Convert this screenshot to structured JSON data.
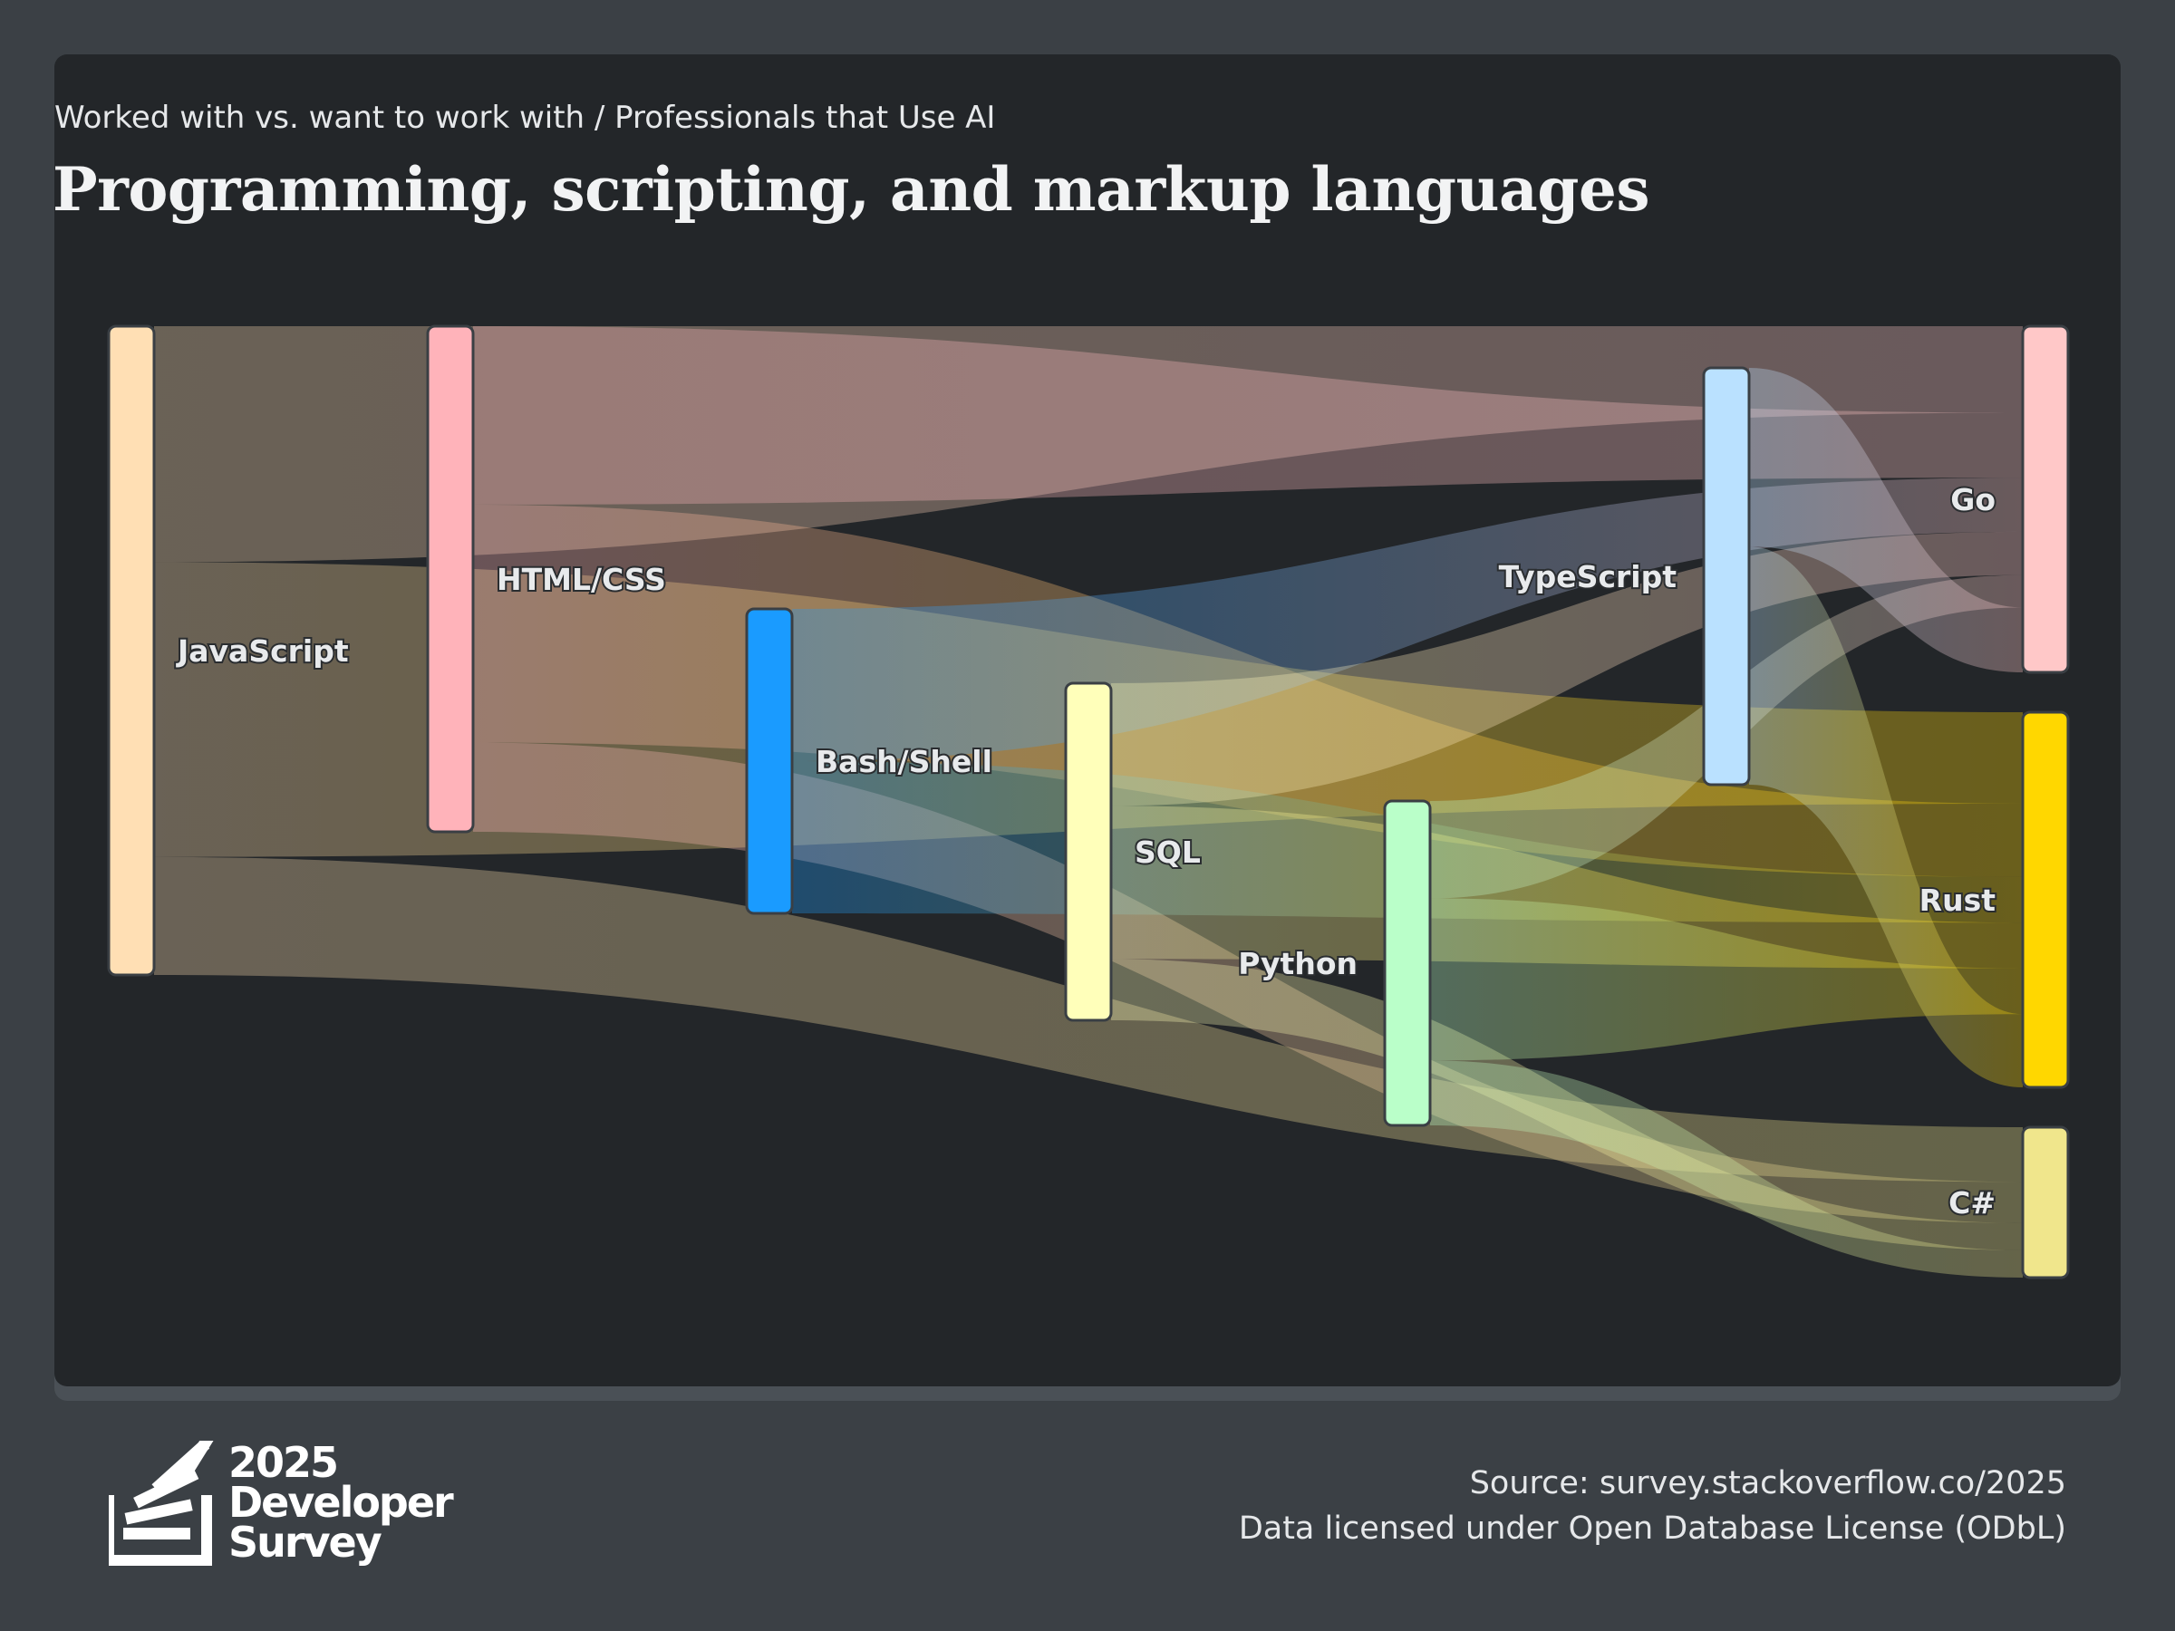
{
  "header": {
    "subtitle": "Worked with vs. want to work with / Professionals that Use AI",
    "title": "Programming, scripting, and markup languages"
  },
  "footer": {
    "logo": {
      "icon": "stack-overflow-survey-logo-icon",
      "year": "2025",
      "line1": "Developer",
      "line2": "Survey"
    },
    "source": "Source: survey.stackoverflow.co/2025",
    "license": "Data licensed under Open Database License (ODbL)"
  },
  "colors": {
    "card_background": "#232629",
    "page_background": "#3b4045"
  },
  "chart_data": {
    "type": "sankey",
    "nodes": [
      {
        "id": "JavaScript",
        "label": "JavaScript",
        "side": "worked",
        "color": "#ffdfb4"
      },
      {
        "id": "HTML/CSS",
        "label": "HTML/CSS",
        "side": "worked",
        "color": "#ffb3ba"
      },
      {
        "id": "Bash/Shell",
        "label": "Bash/Shell",
        "side": "worked",
        "color": "#1a9bff"
      },
      {
        "id": "SQL",
        "label": "SQL",
        "side": "worked",
        "color": "#ffffba"
      },
      {
        "id": "Python",
        "label": "Python",
        "side": "worked",
        "color": "#baffc9"
      },
      {
        "id": "TypeScript",
        "label": "TypeScript",
        "side": "worked",
        "color": "#bae1ff"
      },
      {
        "id": "Go",
        "label": "Go",
        "side": "want",
        "color": "#ffc8c8"
      },
      {
        "id": "Rust",
        "label": "Rust",
        "side": "want",
        "color": "#ffd700"
      },
      {
        "id": "C#",
        "label": "C#",
        "side": "want",
        "color": "#f0e68c"
      }
    ],
    "links": [
      {
        "source": "JavaScript",
        "target": "Go",
        "value": 8
      },
      {
        "source": "JavaScript",
        "target": "Rust",
        "value": 10
      },
      {
        "source": "JavaScript",
        "target": "C#",
        "value": 4
      },
      {
        "source": "HTML/CSS",
        "target": "Go",
        "value": 6
      },
      {
        "source": "HTML/CSS",
        "target": "Rust",
        "value": 8
      },
      {
        "source": "HTML/CSS",
        "target": "C#",
        "value": 3
      },
      {
        "source": "Bash/Shell",
        "target": "Go",
        "value": 5
      },
      {
        "source": "Bash/Shell",
        "target": "Rust",
        "value": 5
      },
      {
        "source": "SQL",
        "target": "Go",
        "value": 4
      },
      {
        "source": "SQL",
        "target": "Rust",
        "value": 5
      },
      {
        "source": "SQL",
        "target": "C#",
        "value": 2
      },
      {
        "source": "Python",
        "target": "Go",
        "value": 3
      },
      {
        "source": "Python",
        "target": "Rust",
        "value": 5
      },
      {
        "source": "Python",
        "target": "C#",
        "value": 2
      },
      {
        "source": "TypeScript",
        "target": "Go",
        "value": 6
      },
      {
        "source": "TypeScript",
        "target": "Rust",
        "value": 8
      }
    ]
  }
}
